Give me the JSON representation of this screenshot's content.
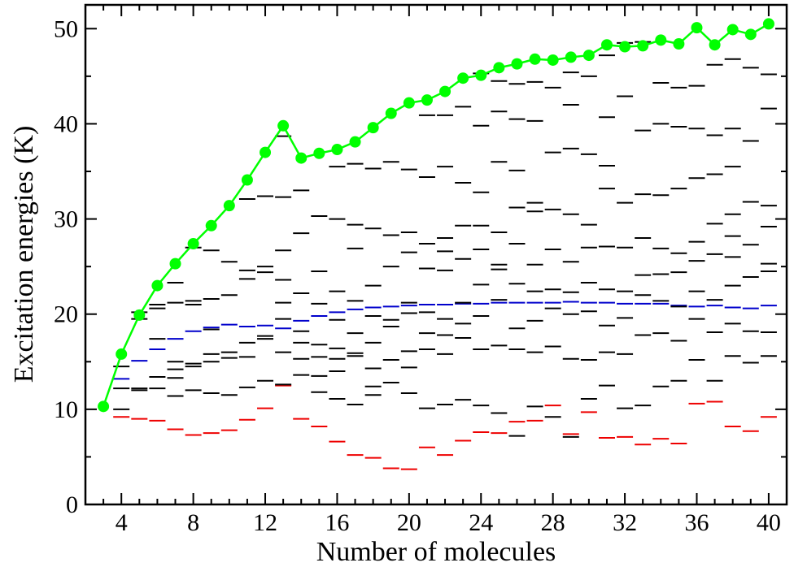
{
  "chart_data": {
    "type": "scatter",
    "xlabel": "Number of molecules",
    "ylabel": "Excitation energies (K)",
    "xlim": [
      2,
      41
    ],
    "ylim": [
      0,
      52.5
    ],
    "x_ticks": [
      4,
      8,
      12,
      16,
      20,
      24,
      28,
      32,
      36,
      40
    ],
    "y_ticks": [
      0,
      10,
      20,
      30,
      40,
      50
    ],
    "grid": false,
    "colors": {
      "upper": "#00ff00",
      "levels": "#000000",
      "blue": "#0000cc",
      "red": "#ee0000"
    },
    "series": [
      {
        "color": "#00ff00",
        "style": "line-with-markers",
        "x": [
          3,
          4,
          5,
          6,
          7,
          8,
          9,
          10,
          11,
          12,
          13,
          14,
          15,
          16,
          17,
          18,
          19,
          20,
          21,
          22,
          23,
          24,
          25,
          26,
          27,
          28,
          29,
          30,
          31,
          32,
          33,
          34,
          35,
          36,
          37,
          38,
          39,
          40
        ],
        "values": [
          10.3,
          15.8,
          19.9,
          23.0,
          25.3,
          27.4,
          29.3,
          31.4,
          34.1,
          37.0,
          39.8,
          36.4,
          36.9,
          37.3,
          38.1,
          39.6,
          41.1,
          42.2,
          42.5,
          43.4,
          44.8,
          45.1,
          45.9,
          46.3,
          46.8,
          46.7,
          47.0,
          47.2,
          48.3,
          48.1,
          48.2,
          48.8,
          48.4,
          50.1,
          48.3,
          49.9,
          49.4,
          50.5
        ]
      },
      {
        "color": "#0000cc",
        "style": "levels",
        "x": [
          4,
          5,
          6,
          7,
          8,
          9,
          10,
          11,
          12,
          13,
          14,
          15,
          16,
          17,
          18,
          19,
          20,
          21,
          22,
          23,
          24,
          25,
          26,
          27,
          28,
          29,
          30,
          31,
          32,
          33,
          34,
          35,
          36,
          37,
          38,
          39,
          40
        ],
        "values": [
          13.2,
          15.1,
          16.3,
          17.4,
          18.2,
          18.6,
          18.9,
          18.7,
          18.8,
          18.5,
          19.3,
          19.8,
          20.2,
          20.5,
          20.7,
          20.8,
          20.9,
          21.0,
          21.0,
          21.1,
          21.1,
          21.2,
          21.2,
          21.2,
          21.2,
          21.3,
          21.2,
          21.2,
          21.1,
          21.1,
          21.1,
          20.9,
          20.8,
          20.9,
          20.7,
          20.6,
          20.9
        ]
      },
      {
        "color": "#ee0000",
        "style": "levels",
        "x": [
          4,
          5,
          6,
          7,
          8,
          9,
          10,
          11,
          12,
          13,
          14,
          15,
          16,
          17,
          18,
          19,
          20,
          21,
          22,
          23,
          24,
          25,
          26,
          27,
          28,
          29,
          30,
          31,
          32,
          33,
          34,
          35,
          36,
          37,
          38,
          39,
          40
        ],
        "values": [
          9.2,
          9.0,
          8.8,
          7.9,
          7.3,
          7.5,
          7.8,
          8.9,
          10.1,
          12.5,
          9.0,
          8.2,
          6.6,
          5.2,
          4.9,
          3.8,
          3.7,
          6.0,
          5.2,
          6.7,
          7.6,
          7.5,
          8.7,
          8.8,
          10.4,
          7.4,
          9.7,
          7.0,
          7.1,
          6.3,
          6.9,
          6.4,
          10.6,
          10.8,
          8.2,
          7.7,
          9.2
        ]
      },
      {
        "color": "#000000",
        "style": "levels",
        "levels_by_x": [
          {
            "x": 4,
            "values": [
              10.0,
              12.2,
              14.5
            ]
          },
          {
            "x": 5,
            "values": [
              12.0,
              12.2,
              19.5,
              20.2
            ]
          },
          {
            "x": 6,
            "values": [
              12.2,
              13.4,
              17.4,
              20.6,
              21.0
            ]
          },
          {
            "x": 7,
            "values": [
              11.4,
              13.3,
              14.2,
              15.0,
              21.2,
              23.3
            ]
          },
          {
            "x": 8,
            "values": [
              12.0,
              14.5,
              14.8,
              21.0,
              21.4,
              27.0
            ]
          },
          {
            "x": 9,
            "values": [
              11.7,
              15.0,
              15.8,
              18.4,
              21.6,
              26.7
            ]
          },
          {
            "x": 10,
            "values": [
              11.5,
              15.4,
              16.0,
              22.0,
              25.5
            ]
          },
          {
            "x": 11,
            "values": [
              12.3,
              15.5,
              17.0,
              23.7,
              24.6,
              32.1
            ]
          },
          {
            "x": 12,
            "values": [
              13.0,
              17.4,
              17.7,
              24.4,
              25.0,
              32.4
            ]
          },
          {
            "x": 13,
            "values": [
              12.6,
              16.0,
              19.5,
              21.2,
              23.6,
              26.7,
              32.3,
              38.7
            ]
          },
          {
            "x": 14,
            "values": [
              13.6,
              15.3,
              17.0,
              18.2,
              22.2,
              28.5,
              33.0
            ]
          },
          {
            "x": 15,
            "values": [
              11.8,
              13.5,
              15.5,
              16.8,
              21.1,
              24.5,
              30.3
            ]
          },
          {
            "x": 16,
            "values": [
              11.1,
              14.0,
              15.3,
              16.4,
              19.4,
              22.4,
              30.0,
              35.5
            ]
          },
          {
            "x": 17,
            "values": [
              10.5,
              15.6,
              15.9,
              18.0,
              21.4,
              26.9,
              29.4,
              35.8
            ]
          },
          {
            "x": 18,
            "values": [
              11.5,
              12.4,
              14.3,
              17.0,
              19.8,
              23.0,
              29.0,
              35.3
            ]
          },
          {
            "x": 19,
            "values": [
              12.8,
              15.2,
              18.7,
              19.4,
              25.0,
              28.3,
              36.0
            ]
          },
          {
            "x": 20,
            "values": [
              11.7,
              14.4,
              16.1,
              20.1,
              21.2,
              26.5,
              28.6,
              35.2
            ]
          },
          {
            "x": 21,
            "values": [
              10.1,
              16.3,
              18.0,
              20.2,
              24.8,
              27.4,
              34.4,
              40.9
            ]
          },
          {
            "x": 22,
            "values": [
              10.5,
              15.8,
              17.8,
              19.5,
              24.6,
              26.6,
              28.0,
              35.5,
              40.9
            ]
          },
          {
            "x": 23,
            "values": [
              11.0,
              17.5,
              19.0,
              21.2,
              25.8,
              29.3,
              33.8,
              41.8
            ]
          },
          {
            "x": 24,
            "values": [
              10.4,
              16.3,
              19.8,
              23.1,
              26.8,
              29.3,
              32.8,
              39.8,
              45.3
            ]
          },
          {
            "x": 25,
            "values": [
              9.6,
              16.7,
              21.5,
              24.7,
              25.2,
              28.6,
              36.0,
              41.3,
              44.5
            ]
          },
          {
            "x": 26,
            "values": [
              7.2,
              16.3,
              18.5,
              23.2,
              27.4,
              31.2,
              35.1,
              40.5,
              44.2
            ]
          },
          {
            "x": 27,
            "values": [
              10.3,
              16.0,
              19.3,
              22.4,
              25.2,
              30.8,
              31.7,
              40.3,
              44.4
            ]
          },
          {
            "x": 28,
            "values": [
              9.2,
              16.6,
              20.6,
              22.6,
              26.8,
              31.0,
              37.0,
              43.8
            ]
          },
          {
            "x": 29,
            "values": [
              7.1,
              15.3,
              20.0,
              22.3,
              25.5,
              30.5,
              37.4,
              42.0,
              45.4
            ]
          },
          {
            "x": 30,
            "values": [
              11.1,
              15.2,
              20.3,
              23.3,
              27.0,
              29.4,
              36.8,
              45.0
            ]
          },
          {
            "x": 31,
            "values": [
              12.5,
              16.0,
              18.8,
              22.6,
              27.1,
              33.2,
              35.6,
              40.7,
              47.2
            ]
          },
          {
            "x": 32,
            "values": [
              10.1,
              15.8,
              19.6,
              22.4,
              27.0,
              31.7,
              42.9,
              48.5
            ]
          },
          {
            "x": 33,
            "values": [
              10.4,
              17.8,
              22.0,
              24.1,
              28.0,
              32.6,
              39.3,
              48.6
            ]
          },
          {
            "x": 34,
            "values": [
              12.4,
              18.0,
              21.4,
              24.2,
              26.9,
              32.5,
              40.0,
              44.3
            ]
          },
          {
            "x": 35,
            "values": [
              13.0,
              17.2,
              20.8,
              24.4,
              26.4,
              33.2,
              39.7,
              43.8
            ]
          },
          {
            "x": 36,
            "values": [
              15.2,
              19.5,
              22.4,
              25.6,
              27.6,
              34.3,
              39.5,
              44.0
            ]
          },
          {
            "x": 37,
            "values": [
              13.0,
              18.1,
              21.5,
              26.3,
              29.5,
              34.7,
              38.8,
              46.2
            ]
          },
          {
            "x": 38,
            "values": [
              15.6,
              19.0,
              23.0,
              26.0,
              28.2,
              30.5,
              35.5,
              39.5,
              46.8
            ]
          },
          {
            "x": 39,
            "values": [
              14.9,
              18.2,
              23.9,
              27.3,
              31.8,
              38.2,
              45.9
            ]
          },
          {
            "x": 40,
            "values": [
              15.6,
              18.1,
              24.5,
              25.3,
              29.2,
              31.4,
              41.6,
              45.2
            ]
          }
        ]
      }
    ]
  }
}
